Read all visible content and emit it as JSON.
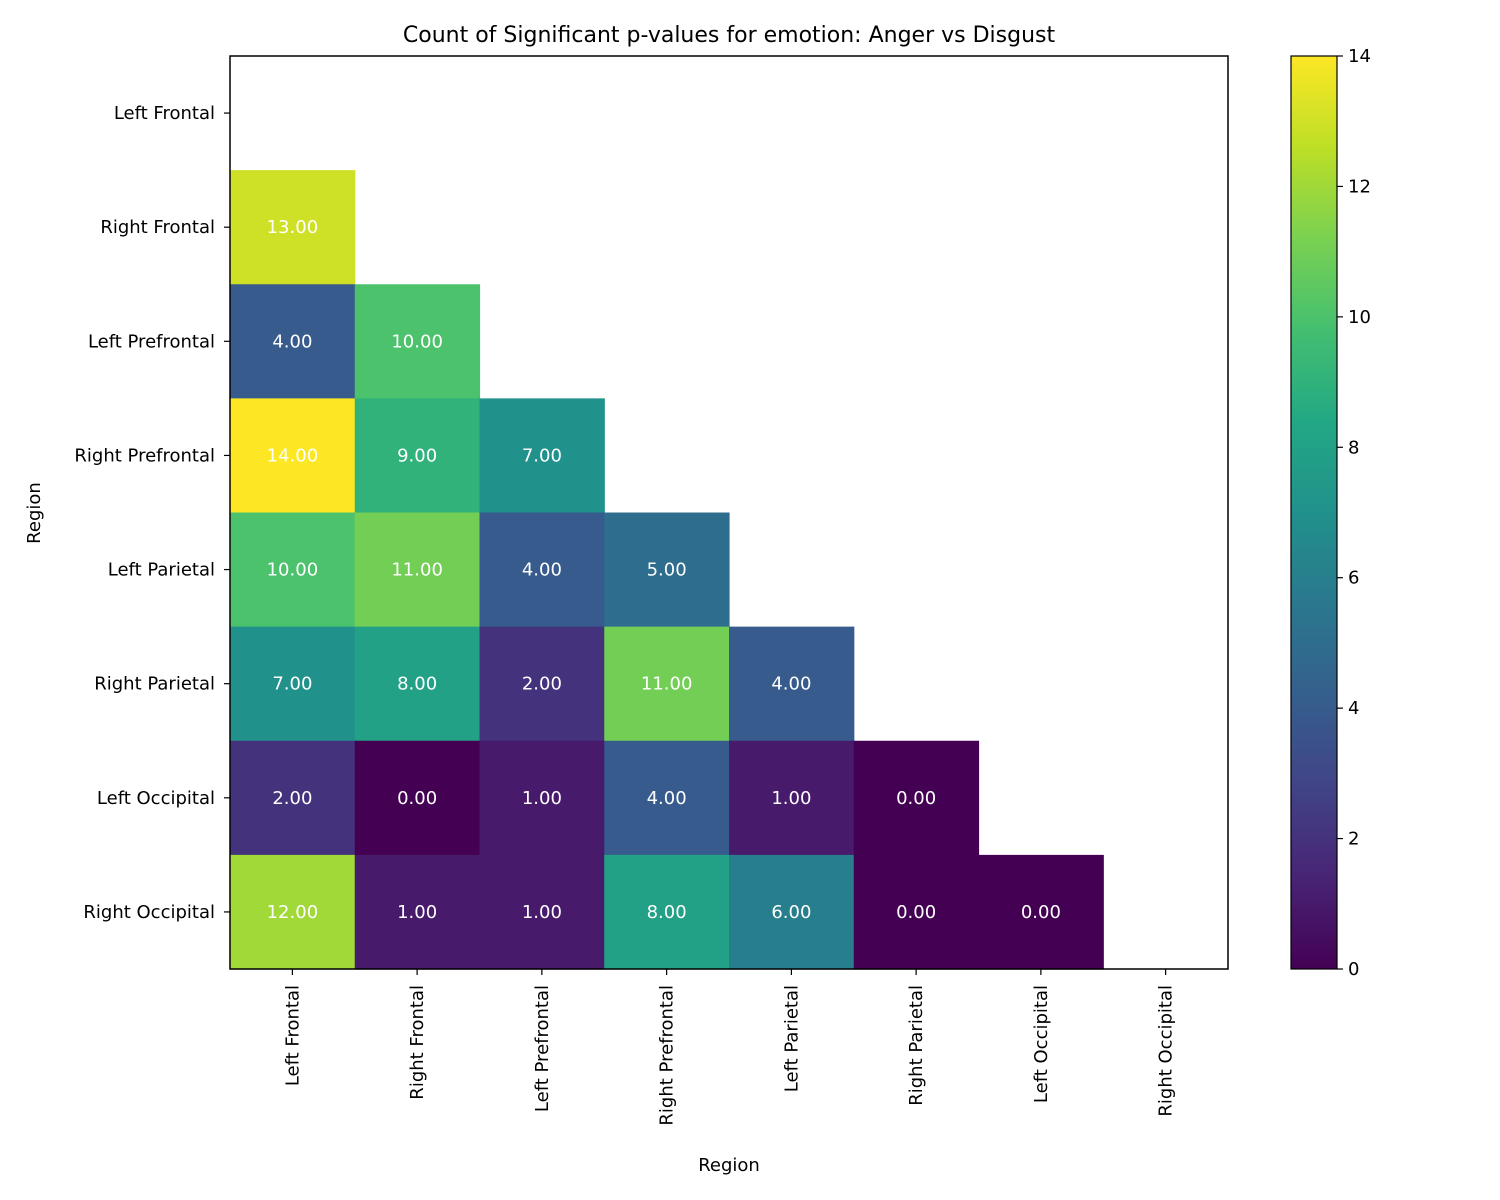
{
  "chart_data": {
    "type": "heatmap",
    "title": "Count of Significant p-values for emotion: Anger vs Disgust",
    "xlabel": "Region",
    "ylabel": "Region",
    "rows": [
      "Left Frontal",
      "Right Frontal",
      "Left Prefrontal",
      "Right Prefrontal",
      "Left Parietal",
      "Right Parietal",
      "Left Occipital",
      "Right Occipital"
    ],
    "columns": [
      "Left Frontal",
      "Right Frontal",
      "Left Prefrontal",
      "Right Prefrontal",
      "Left Parietal",
      "Right Parietal",
      "Left Occipital",
      "Right Occipital"
    ],
    "values": [
      [
        null,
        null,
        null,
        null,
        null,
        null,
        null,
        null
      ],
      [
        13,
        null,
        null,
        null,
        null,
        null,
        null,
        null
      ],
      [
        4,
        10,
        null,
        null,
        null,
        null,
        null,
        null
      ],
      [
        14,
        9,
        7,
        null,
        null,
        null,
        null,
        null
      ],
      [
        10,
        11,
        4,
        5,
        null,
        null,
        null,
        null
      ],
      [
        7,
        8,
        2,
        11,
        4,
        null,
        null,
        null
      ],
      [
        2,
        0,
        1,
        4,
        1,
        0,
        null,
        null
      ],
      [
        12,
        1,
        1,
        8,
        6,
        0,
        0,
        null
      ]
    ],
    "value_format": "0.00",
    "colormap": "viridis",
    "colorbar": {
      "range": [
        0,
        14
      ],
      "ticks": [
        "0",
        "2",
        "4",
        "6",
        "8",
        "10",
        "12",
        "14"
      ]
    },
    "grid": false
  }
}
